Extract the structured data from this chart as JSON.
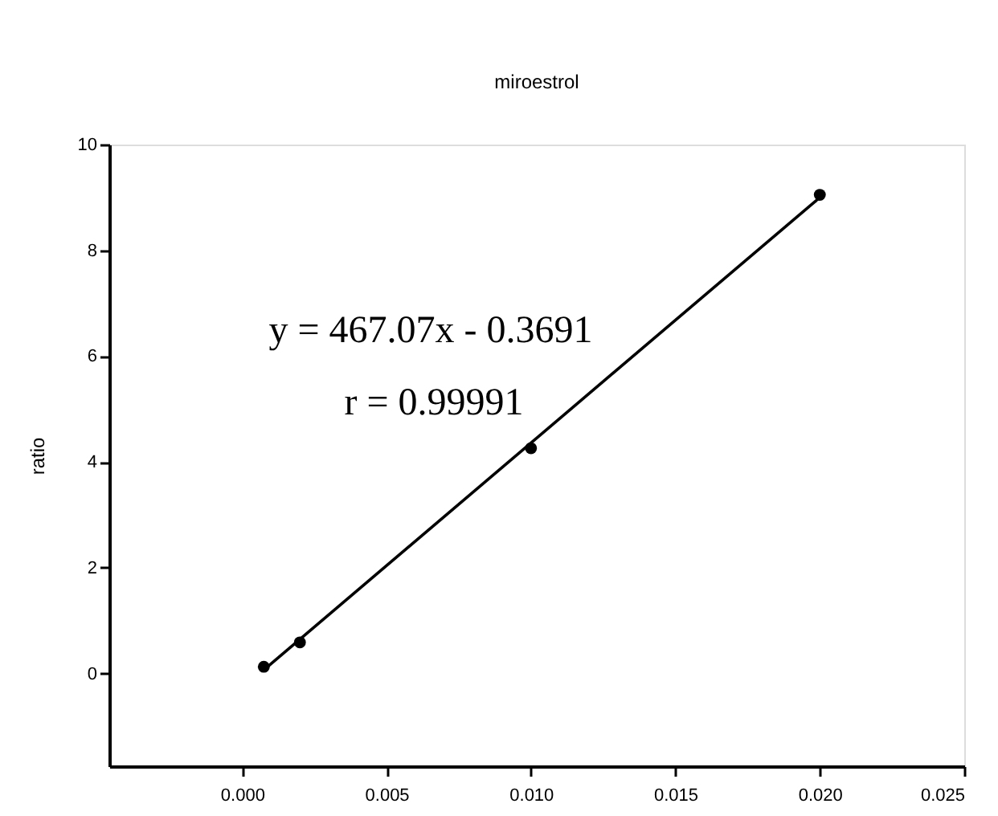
{
  "chart_data": {
    "type": "scatter",
    "title": "miroestrol",
    "ylabel": "ratio",
    "x": [
      0.00075,
      0.002,
      0.01,
      0.02
    ],
    "series": [
      {
        "color": "#000000",
        "marker": "circle",
        "values": [
          0.13,
          0.59,
          4.26,
          9.05
        ]
      },
      {
        "type": "line",
        "color": "#000000",
        "marker": "none",
        "x": [
          0.00075,
          0.02
        ],
        "values": [
          0.07,
          9.0
        ]
      }
    ],
    "xlim": [
      -0.0046,
      0.025
    ],
    "xticks": [
      {
        "value": 0,
        "label": "0.000"
      },
      {
        "value": 0.005,
        "label": "0.005"
      },
      {
        "value": 0.01,
        "label": "0.010"
      },
      {
        "value": 0.015,
        "label": "0.015"
      },
      {
        "value": 0.02,
        "label": "0.020"
      },
      {
        "value": 0.025,
        "label": "0.025"
      }
    ],
    "ylim": [
      -1.75,
      10
    ],
    "yticks": [
      0,
      2,
      4,
      6,
      8,
      10
    ],
    "grid": false,
    "annotations": [
      "y = 467.07x - 0.3691",
      "r = 0.99991"
    ]
  }
}
